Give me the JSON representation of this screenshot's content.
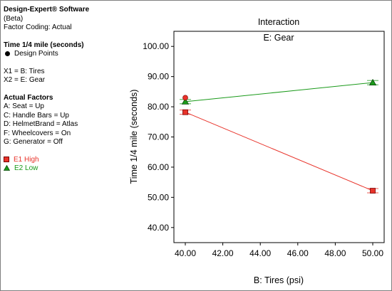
{
  "info": {
    "software": "Design-Expert® Software",
    "version": "(Beta)",
    "coding": "Factor Coding: Actual",
    "response_title": "Time 1/4 mile (seconds)",
    "design_points_label": "Design Points",
    "x1": "X1 = B: Tires",
    "x2": "X2 = E: Gear",
    "actual_factors_title": "Actual Factors",
    "factors": [
      "A: Seat = Up",
      "C: Handle Bars = Up",
      "D: HelmetBrand = Atlas",
      "F: Wheelcovers = On",
      "G: Generator = Off"
    ],
    "legend": [
      {
        "label": "E1 High",
        "color": "#e8332a",
        "marker": "square"
      },
      {
        "label": "E2 Low",
        "color": "#1a9a1a",
        "marker": "triangle"
      }
    ]
  },
  "chart_data": {
    "type": "line",
    "title": "Interaction",
    "subtitle": "E: Gear",
    "xlabel": "B: Tires (psi)",
    "ylabel": "Time 1/4 mile (seconds)",
    "xlim": [
      40,
      50
    ],
    "ylim": [
      35,
      105
    ],
    "x_ticks": [
      "40.00",
      "42.00",
      "44.00",
      "46.00",
      "48.00",
      "50.00"
    ],
    "y_ticks": [
      "40.00",
      "50.00",
      "60.00",
      "70.00",
      "80.00",
      "90.00",
      "100.00"
    ],
    "series": [
      {
        "name": "E1 High",
        "color": "#e8332a",
        "marker": "square",
        "x": [
          40,
          50
        ],
        "y": [
          78.2,
          52.2
        ]
      },
      {
        "name": "E2 Low",
        "color": "#1a9a1a",
        "marker": "triangle",
        "x": [
          40,
          50
        ],
        "y": [
          81.7,
          88.0
        ]
      }
    ],
    "design_points": [
      {
        "x": 40,
        "y": 83.0,
        "color": "#e8332a"
      }
    ],
    "grid": false,
    "legend_position": "left-panel"
  }
}
